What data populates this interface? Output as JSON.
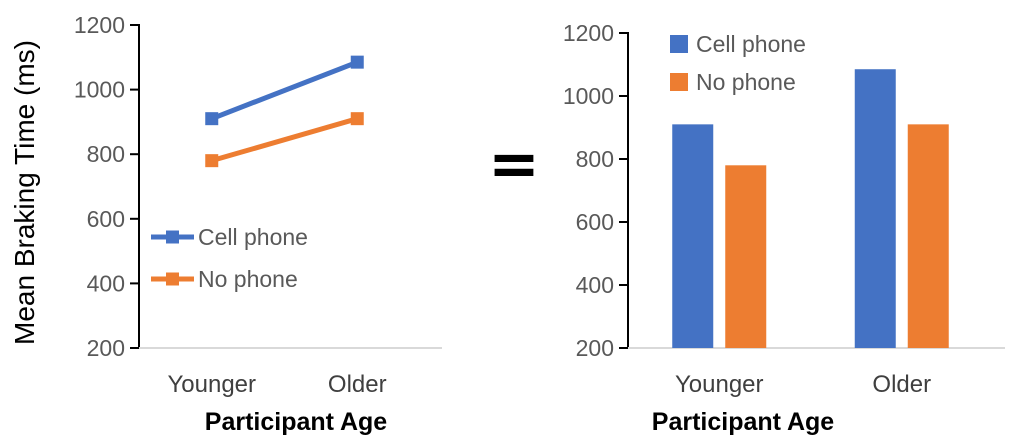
{
  "connector": {
    "symbol": "="
  },
  "colors": {
    "series_blue": "#4472C4",
    "series_orange": "#ED7D31",
    "axis_line": "#000000",
    "tick_label": "#595959",
    "category_label": "#3f3f3f",
    "legend_label": "#595959",
    "axis_title": "#000000",
    "baseline": "#d9d9d9",
    "background": "#ffffff"
  },
  "chart_data": [
    {
      "type": "line",
      "title": "",
      "xlabel": "Participant Age",
      "ylabel": "Mean Braking Time (ms)",
      "categories": [
        "Younger",
        "Older"
      ],
      "series": [
        {
          "name": "Cell phone",
          "color": "#4472C4",
          "values": [
            910,
            1085
          ]
        },
        {
          "name": "No phone",
          "color": "#ED7D31",
          "values": [
            780,
            910
          ]
        }
      ],
      "ylim": [
        200,
        1200
      ],
      "yticks": [
        200,
        400,
        600,
        800,
        1000,
        1200
      ],
      "grid": false,
      "legend_position": "inside-left"
    },
    {
      "type": "bar",
      "title": "",
      "xlabel": "Participant Age",
      "ylabel": "",
      "categories": [
        "Younger",
        "Older"
      ],
      "series": [
        {
          "name": "Cell phone",
          "color": "#4472C4",
          "values": [
            910,
            1085
          ]
        },
        {
          "name": "No phone",
          "color": "#ED7D31",
          "values": [
            780,
            910
          ]
        }
      ],
      "ylim": [
        200,
        1200
      ],
      "yticks": [
        200,
        400,
        600,
        800,
        1000,
        1200
      ],
      "grid": false,
      "legend_position": "top"
    }
  ]
}
